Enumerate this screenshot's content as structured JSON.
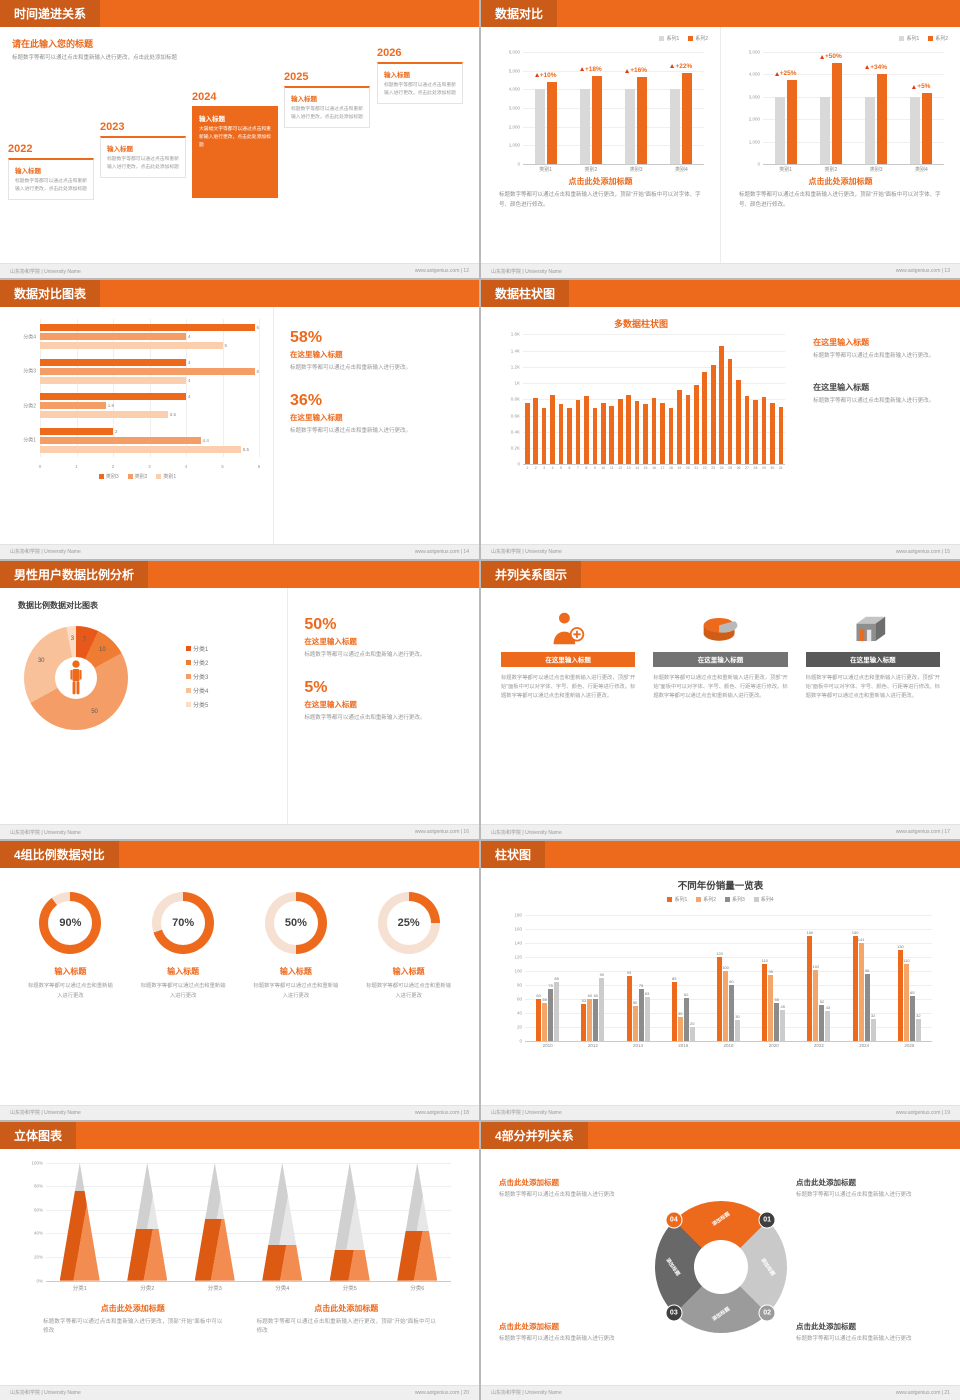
{
  "meta": {
    "accent": "#ed6a1d",
    "ring_track": "#f6e0d2",
    "footer_left": "山东协和学院 | University Name"
  },
  "slides": {
    "s12": {
      "header": "时间递进关系",
      "footer_right": "www.aotgenius.com | 12",
      "intro_title": "请在此输入您的标题",
      "intro_body": "标题数字等都可以通过点击和重新输入进行更改，点击此处添加标题",
      "steps": [
        {
          "year": "2022",
          "title": "输入标题",
          "body": "标题数字等都可以通过点击和重新输入进行更改，点击此处添加标题"
        },
        {
          "year": "2023",
          "title": "输入标题",
          "body": "标题数字等都可以通过点击和重新输入进行更改，点击此处添加标题"
        },
        {
          "year": "2024",
          "title": "输入标题",
          "body": "大篇幅文字等都可以通过点击和重新输入进行更改，点击此处添加标题"
        },
        {
          "year": "2025",
          "title": "输入标题",
          "body": "标题数字等都可以通过点击和重新输入进行更改，点击此处添加标题"
        },
        {
          "year": "2026",
          "title": "输入标题",
          "body": "标题数字等都可以通过点击和重新输入进行更改，点击此处添加标题"
        }
      ]
    },
    "s13": {
      "header": "数据对比",
      "footer_right": "www.aotgenius.com | 13",
      "panels": [
        {
          "chart": {
            "type": "vbar",
            "categories": [
              "类别1",
              "类别2",
              "类别3",
              "类别4"
            ],
            "series": [
              {
                "name": "系列1",
                "color": "#d9d9d9",
                "values": [
                  4000,
                  4000,
                  4000,
                  4000
                ]
              },
              {
                "name": "系列2",
                "color": "#ed6a1d",
                "values": [
                  4400,
                  4720,
                  4640,
                  4880
                ]
              }
            ],
            "group_badges": [
              "+10%",
              "+18%",
              "+16%",
              "+22%"
            ],
            "yticks": [
              "6,000",
              "5,000",
              "4,000",
              "3,000",
              "2,000",
              "1,000",
              "0"
            ],
            "ymax": 6000
          },
          "caption_title": "点击此处添加标题",
          "caption_body": "标题数字等都可以通过点击和重新输入进行更改，顶部“开始”面板中可以对字体、字号、颜色进行修改。"
        },
        {
          "chart": {
            "type": "vbar",
            "categories": [
              "类别1",
              "类别2",
              "类别3",
              "类别4"
            ],
            "series": [
              {
                "name": "系列1",
                "color": "#d9d9d9",
                "values": [
                  3000,
                  3000,
                  3000,
                  3000
                ]
              },
              {
                "name": "系列2",
                "color": "#ed6a1d",
                "values": [
                  3750,
                  4500,
                  4020,
                  3150
                ]
              }
            ],
            "group_badges": [
              "+25%",
              "+50%",
              "+34%",
              "+5%"
            ],
            "yticks": [
              "5,000",
              "4,000",
              "3,000",
              "2,000",
              "1,000",
              "0"
            ],
            "ymax": 5000
          },
          "caption_title": "点击此处添加标题",
          "caption_body": "标题数字等都可以通过点击和重新输入进行更改，顶部“开始”面板中可以对字体、字号、颜色进行修改。"
        }
      ]
    },
    "s14": {
      "header": "数据对比图表",
      "footer_right": "www.aotgenius.com | 14",
      "chart": {
        "type": "hbar",
        "groups": [
          "分类4",
          "分类3",
          "分类2",
          "分类1"
        ],
        "series_legend": [
          {
            "name": "类别3",
            "color": "#ed6a1d"
          },
          {
            "name": "类别2",
            "color": "#f59d66"
          },
          {
            "name": "类别1",
            "color": "#fbcfae"
          }
        ],
        "values": [
          [
            6,
            4,
            5
          ],
          [
            4,
            6,
            4
          ],
          [
            4,
            1.8,
            3.5
          ],
          [
            2,
            4.4,
            5.5
          ]
        ],
        "xticks": [
          "0",
          "1",
          "2",
          "3",
          "4",
          "5",
          "6"
        ],
        "xmax": 6
      },
      "stats": [
        {
          "value": "58%",
          "title": "在这里输入标题",
          "body": "标题数字等都可以通过点击和重新输入进行更改。"
        },
        {
          "value": "36%",
          "title": "在这里输入标题",
          "body": "标题数字等都可以通过点击和重新输入进行更改。"
        }
      ]
    },
    "s15": {
      "header": "数据柱状图",
      "footer_right": "www.aotgenius.com | 15",
      "chart_title": "多数据柱状图",
      "chart": {
        "type": "vbar",
        "categories": [
          "1",
          "2",
          "3",
          "4",
          "5",
          "6",
          "7",
          "8",
          "9",
          "10",
          "11",
          "12",
          "13",
          "14",
          "15",
          "16",
          "17",
          "18",
          "19",
          "20",
          "21",
          "22",
          "23",
          "24",
          "25",
          "26",
          "27",
          "28",
          "29",
          "30",
          "31"
        ],
        "series": [
          {
            "name": "系列1",
            "color": "#ed6a1d",
            "values": [
              760,
              820,
              700,
              860,
              740,
              700,
              790,
              840,
              690,
              760,
              720,
              800,
              860,
              780,
              740,
              820,
              760,
              700,
              920,
              860,
              980,
              1140,
              1220,
              1460,
              1300,
              1040,
              840,
              790,
              830,
              750,
              710
            ]
          }
        ],
        "yticks": [
          "1.6K",
          "1.4K",
          "1.2K",
          "1K",
          "0.8K",
          "0.6K",
          "0.4K",
          "0.2K",
          "0"
        ],
        "ymax": 1600
      },
      "blocks": [
        {
          "title": "在这里输入标题",
          "body": "标题数字等都可以通过点击和重新输入进行更改。"
        },
        {
          "title": "在这里输入标题",
          "body": "标题数字等都可以通过点击和重新输入进行更改。"
        }
      ]
    },
    "s16": {
      "header": "男性用户数据比例分析",
      "footer_right": "www.aotgenius.com | 16",
      "panel_title": "数据比例数据对比图表",
      "center_icon": "male-icon",
      "donut": {
        "type": "donut",
        "values": [
          7,
          10,
          50,
          30,
          3
        ],
        "labels": [
          "7",
          "10",
          "50",
          "30",
          "3"
        ],
        "colors": [
          "#e8581a",
          "#ef7c33",
          "#f59d66",
          "#f9c19a",
          "#fcdcc5"
        ],
        "legend": [
          "分类1",
          "分类2",
          "分类3",
          "分类4",
          "分类5"
        ]
      },
      "stats": [
        {
          "value": "50%",
          "title": "在这里输入标题",
          "body": "标题数字等都可以通过点击和重新输入进行更改。"
        },
        {
          "value": "5%",
          "title": "在这里输入标题",
          "body": "标题数字等都可以通过点击和重新输入进行更改。"
        }
      ]
    },
    "s17": {
      "header": "并列关系图示",
      "footer_right": "www.aotgenius.com | 17",
      "columns": [
        {
          "icon": "nurse-icon",
          "bar_color": "#ed6a1d",
          "title": "在这里输入标题",
          "body": "标题数字等都可以通过点击和重新输入进行更改，顶部“开始”面板中可以对字体、字号、颜色、行距等进行修改。标题数字等都可以通过点击和重新输入进行更改。"
        },
        {
          "icon": "pie-3d-icon",
          "bar_color": "#737373",
          "title": "在这里输入标题",
          "body": "标题数字等都可以通过点击和重新输入进行更改，顶部“开始”面板中可以对字体、字号、颜色、行距等进行修改。标题数字等都可以通过点击和重新输入进行更改。"
        },
        {
          "icon": "building-icon",
          "bar_color": "#595959",
          "title": "在这里输入标题",
          "body": "标题数字等都可以通过点击和重新输入进行更改，顶部“开始”面板中可以对字体、字号、颜色、行距等进行修改。标题数字等都可以通过点击和重新输入进行更改。"
        }
      ]
    },
    "s18": {
      "header": "4组比例数据对比",
      "footer_right": "www.aotgenius.com | 18",
      "rings": [
        {
          "type": "ring",
          "percent": 90,
          "label": "90%",
          "title": "输入标题",
          "body": "标题数字等都可以通过点击和重新输入进行更改"
        },
        {
          "type": "ring",
          "percent": 70,
          "label": "70%",
          "title": "输入标题",
          "body": "标题数字等都可以通过点击和重新输入进行更改"
        },
        {
          "type": "ring",
          "percent": 50,
          "label": "50%",
          "title": "输入标题",
          "body": "标题数字等都可以通过点击和重新输入进行更改"
        },
        {
          "type": "ring",
          "percent": 25,
          "label": "25%",
          "title": "输入标题",
          "body": "标题数字等都可以通过点击和重新输入进行更改"
        }
      ]
    },
    "s19": {
      "header": "柱状图",
      "footer_right": "www.aotgenius.com | 19",
      "chart_title": "不同年份销量一览表",
      "chart": {
        "type": "vbar",
        "show_labels": true,
        "categories": [
          "2010",
          "2012",
          "2014",
          "2016",
          "2018",
          "2020",
          "2022",
          "2024",
          "2026"
        ],
        "series": [
          {
            "name": "系列1",
            "color": "#ed6a1d",
            "values": [
              60,
              53,
              93,
              85,
              120,
              110,
              150,
              150,
              130
            ]
          },
          {
            "name": "系列2",
            "color": "#f4a569",
            "values": [
              55,
              60,
              50,
              35,
              100,
              95,
              102,
              141,
              110
            ]
          },
          {
            "name": "系列3",
            "color": "#8c8c8c",
            "values": [
              75,
              60,
              75,
              62,
              80,
              55,
              52,
              96,
              65
            ]
          },
          {
            "name": "系列4",
            "color": "#cccccc",
            "values": [
              85,
              90,
              63,
              20,
              30,
              45,
              43,
              32,
              32
            ]
          }
        ],
        "yticks": [
          "180",
          "160",
          "140",
          "120",
          "100",
          "80",
          "60",
          "40",
          "20",
          "0"
        ],
        "ymax": 180
      }
    },
    "s20": {
      "header": "立体图表",
      "footer_right": "www.aotgenius.com | 20",
      "chart": {
        "type": "cones",
        "categories": [
          "分类1",
          "分类2",
          "分类3",
          "分类4",
          "分类5",
          "分类6"
        ],
        "fill_percents": [
          76,
          44,
          52,
          30,
          26,
          42
        ],
        "yticks": [
          "100%",
          "80%",
          "60%",
          "40%",
          "20%",
          "0%"
        ]
      },
      "captions": [
        {
          "title": "点击此处添加标题",
          "body": "标题数字等都可以通过点击和重新输入进行更改，顶部“开始”面板中可以修改"
        },
        {
          "title": "点击此处添加标题",
          "body": "标题数字等都可以通过点击和重新输入进行更改，顶部“开始”面板中可以修改"
        }
      ]
    },
    "s21": {
      "header": "4部分并列关系",
      "footer_right": "www.aotgenius.com | 21",
      "wheel": {
        "type": "wheel",
        "segments": [
          {
            "num": "01",
            "label": "添加标题",
            "color": "#ed6a1d",
            "badge_color": "#3f3f3f"
          },
          {
            "num": "02",
            "label": "添加标题",
            "color": "#c9c9c9",
            "badge_color": "#9b9b9b"
          },
          {
            "num": "03",
            "label": "添加标题",
            "color": "#9b9b9b",
            "badge_color": "#3f3f3f"
          },
          {
            "num": "04",
            "label": "添加标题",
            "color": "#686868",
            "badge_color": "#ed6a1d"
          }
        ]
      },
      "blocks": [
        {
          "title": "点击此处添加标题",
          "body": "标题数字等都可以通过点击和重新输入进行更改"
        },
        {
          "title": "点击此处添加标题",
          "body": "标题数字等都可以通过点击和重新输入进行更改"
        },
        {
          "title": "点击此处添加标题",
          "body": "标题数字等都可以通过点击和重新输入进行更改"
        },
        {
          "title": "点击此处添加标题",
          "body": "标题数字等都可以通过点击和重新输入进行更改"
        }
      ]
    }
  }
}
